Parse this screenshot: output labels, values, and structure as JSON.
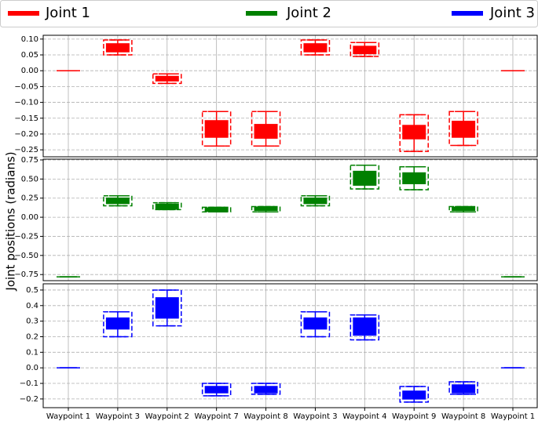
{
  "chart_data": {
    "type": "box",
    "ylabel": "Joint positions (radians)",
    "categories": [
      "Waypoint 1",
      "Waypoint 3",
      "Waypoint 2",
      "Waypoint 7",
      "Waypoint 8",
      "Waypoint 3",
      "Waypoint 4",
      "Waypoint 9",
      "Waypoint 8",
      "Waypoint 1"
    ],
    "grid": true,
    "legend_loc": "upper center",
    "panels": [
      {
        "ylim": [
          -0.272,
          0.112
        ],
        "yticks": [
          {
            "value": 0.1,
            "label": "0.10"
          },
          {
            "value": 0.05,
            "label": "0.05"
          },
          {
            "value": 0,
            "label": "0.00"
          },
          {
            "value": -0.05,
            "label": "−0.05"
          },
          {
            "value": -0.1,
            "label": "−0.10"
          },
          {
            "value": -0.15,
            "label": "−0.15"
          },
          {
            "value": -0.2,
            "label": "−0.20"
          },
          {
            "value": -0.25,
            "label": "−0.25"
          }
        ],
        "series": [
          {
            "name": "Joint 1",
            "color": "#ff0000",
            "low": [
              0,
              0.05,
              -0.04,
              -0.238,
              -0.238,
              0.05,
              0.045,
              -0.255,
              -0.236,
              0
            ],
            "q1": [
              0,
              0.06,
              -0.032,
              -0.21,
              -0.213,
              0.06,
              0.054,
              -0.215,
              -0.21,
              0
            ],
            "q3": [
              0,
              0.085,
              -0.018,
              -0.158,
              -0.17,
              0.085,
              0.077,
              -0.173,
              -0.16,
              0
            ],
            "high": [
              0,
              0.097,
              -0.01,
              -0.129,
              -0.129,
              0.097,
              0.089,
              -0.139,
              -0.129,
              0
            ]
          }
        ]
      },
      {
        "ylim": [
          -0.83,
          0.76
        ],
        "yticks": [
          {
            "value": 0.75,
            "label": "0.75"
          },
          {
            "value": 0.5,
            "label": "0.50"
          },
          {
            "value": 0.25,
            "label": "0.25"
          },
          {
            "value": 0,
            "label": "0.00"
          },
          {
            "value": -0.25,
            "label": "−0.25"
          },
          {
            "value": -0.5,
            "label": "−0.50"
          },
          {
            "value": -0.75,
            "label": "−0.75"
          }
        ],
        "series": [
          {
            "name": "Joint 2",
            "color": "#008000",
            "low": [
              -0.78,
              0.15,
              0.1,
              0.07,
              0.07,
              0.15,
              0.37,
              0.36,
              0.07,
              -0.78
            ],
            "q1": [
              -0.78,
              0.18,
              0.11,
              0.08,
              0.09,
              0.18,
              0.42,
              0.44,
              0.09,
              -0.78
            ],
            "q3": [
              -0.78,
              0.25,
              0.17,
              0.12,
              0.13,
              0.25,
              0.6,
              0.58,
              0.13,
              -0.78
            ],
            "high": [
              -0.78,
              0.28,
              0.19,
              0.13,
              0.14,
              0.28,
              0.68,
              0.66,
              0.14,
              -0.78
            ]
          }
        ]
      },
      {
        "ylim": [
          -0.256,
          0.54
        ],
        "yticks": [
          0.5,
          0.4,
          0.3,
          0.2,
          0.1,
          {
            "value": 0,
            "label": "0.0"
          },
          {
            "value": -0.1,
            "label": "−0.1"
          },
          {
            "value": -0.2,
            "label": "−0.2"
          }
        ],
        "series": [
          {
            "name": "Joint 3",
            "color": "#0000ff",
            "low": [
              0,
              0.2,
              0.27,
              -0.18,
              -0.17,
              0.2,
              0.18,
              -0.22,
              -0.17,
              0
            ],
            "q1": [
              0,
              0.25,
              0.32,
              -0.16,
              -0.16,
              0.25,
              0.21,
              -0.2,
              -0.16,
              0
            ],
            "q3": [
              0,
              0.32,
              0.45,
              -0.12,
              -0.12,
              0.32,
              0.32,
              -0.15,
              -0.11,
              0
            ],
            "high": [
              0,
              0.36,
              0.5,
              -0.1,
              -0.1,
              0.36,
              0.34,
              -0.12,
              -0.09,
              0
            ]
          }
        ]
      }
    ]
  }
}
